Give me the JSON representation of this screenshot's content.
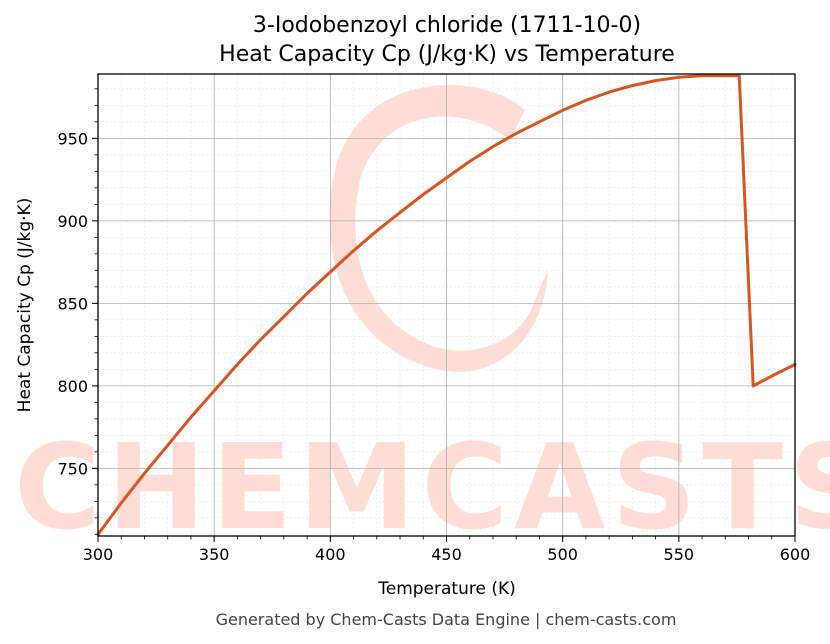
{
  "chart_data": {
    "type": "line",
    "title": "3-Iodobenzoyl chloride (1711-10-0)",
    "subtitle": "Heat Capacity Cp (J/kg·K) vs Temperature",
    "xlabel": "Temperature (K)",
    "ylabel": "Heat Capacity Cp (J/kg·K)",
    "xlim": [
      300,
      600
    ],
    "ylim": [
      709,
      989
    ],
    "x_ticks": [
      300,
      350,
      400,
      450,
      500,
      550,
      600
    ],
    "y_ticks": [
      750,
      800,
      850,
      900,
      950
    ],
    "grid": true,
    "legend": "none",
    "series": [
      {
        "color": "#d9541e",
        "x": [
          300,
          310,
          320,
          330,
          340,
          350,
          360,
          370,
          380,
          390,
          400,
          410,
          420,
          430,
          440,
          450,
          460,
          470,
          480,
          490,
          500,
          510,
          520,
          530,
          540,
          550,
          560,
          570,
          576,
          582,
          590,
          600
        ],
        "y": [
          710,
          729,
          747,
          764,
          781,
          797,
          813,
          828,
          842,
          856,
          869,
          882,
          894,
          905,
          916,
          926,
          936,
          945,
          953,
          960,
          967,
          973,
          978,
          982,
          985,
          987,
          988,
          988,
          988,
          800,
          806,
          813
        ]
      }
    ]
  },
  "watermark": {
    "text": "CHEMCASTS",
    "color": "#ffd9d2"
  },
  "footer": "Generated by Chem-Casts Data Engine | chem-casts.com"
}
